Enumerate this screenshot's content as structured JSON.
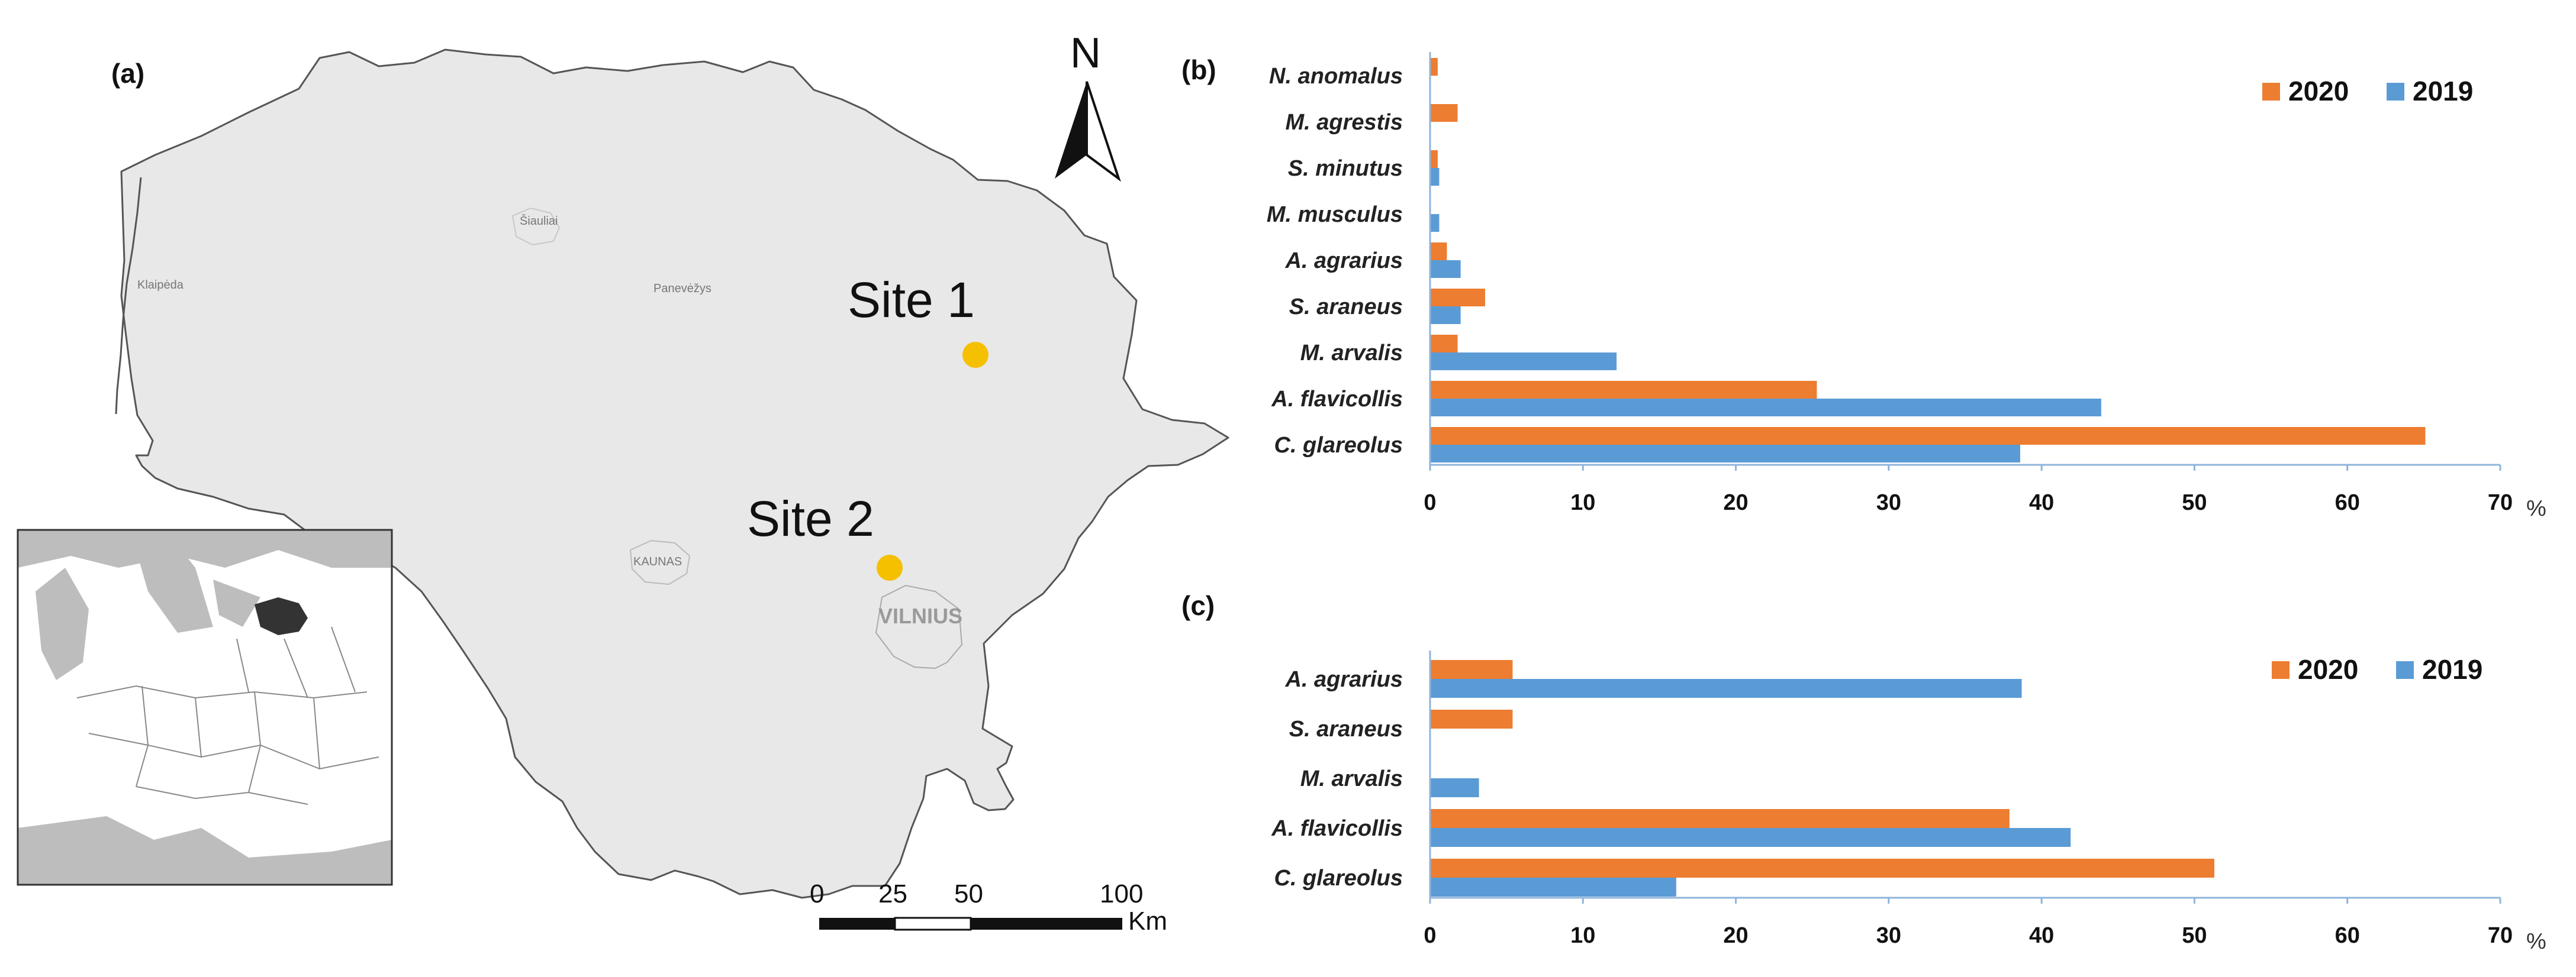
{
  "colors": {
    "c2020": "#ED7D31",
    "c2019": "#5B9BD5",
    "site": "#F5C000",
    "country": "#E8E8E8",
    "axis": "#8FB4DC"
  },
  "map": {
    "panel_label": "(a)",
    "north_label": "N",
    "sites": [
      {
        "label": "Site 1"
      },
      {
        "label": "Site 2"
      }
    ],
    "cities": {
      "siauliai": "Šiauliai",
      "klaipeda": "Klaipėda",
      "panevezys": "Panevėžys",
      "kaunas": "KAUNAS",
      "vilnius": "VILNIUS"
    },
    "scale": {
      "ticks": [
        "0",
        "25",
        "50",
        "100"
      ],
      "unit": "Km"
    }
  },
  "chart_data": [
    {
      "type": "bar",
      "orientation": "horizontal",
      "panel_label": "(b)",
      "categories": [
        "C. glareolus",
        "A. flavicollis",
        "M. arvalis",
        "S. araneus",
        "A. agrarius",
        "M. musculus",
        "S. minutus",
        "M. agrestis",
        "N. anomalus"
      ],
      "series": [
        {
          "name": "2020",
          "values": [
            65.1,
            25.3,
            1.8,
            3.6,
            1.1,
            0,
            0.5,
            1.8,
            0.5
          ]
        },
        {
          "name": "2019",
          "values": [
            38.6,
            43.9,
            12.2,
            2.0,
            2.0,
            0.6,
            0.6,
            0,
            0
          ]
        }
      ],
      "xlim": [
        0,
        70
      ],
      "ticks": [
        0,
        10,
        20,
        30,
        40,
        50,
        60,
        70
      ],
      "unit": "%",
      "legend": [
        "2020",
        "2019"
      ],
      "legend_position": "top-right"
    },
    {
      "type": "bar",
      "orientation": "horizontal",
      "panel_label": "(c)",
      "categories": [
        "C. glareolus",
        "A. flavicollis",
        "M. arvalis",
        "S. araneus",
        "A. agrarius"
      ],
      "series": [
        {
          "name": "2020",
          "values": [
            51.3,
            37.9,
            0,
            5.4,
            5.4
          ]
        },
        {
          "name": "2019",
          "values": [
            16.1,
            41.9,
            3.2,
            0,
            38.7
          ]
        }
      ],
      "xlim": [
        0,
        70
      ],
      "ticks": [
        0,
        10,
        20,
        30,
        40,
        50,
        60,
        70
      ],
      "unit": "%",
      "legend": [
        "2020",
        "2019"
      ],
      "legend_position": "top-right"
    }
  ]
}
